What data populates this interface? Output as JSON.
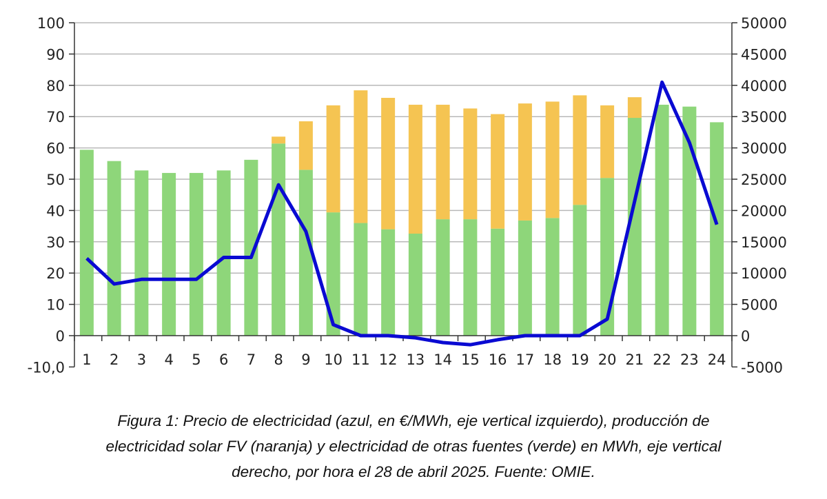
{
  "chart_data": {
    "type": "bar",
    "stacked": true,
    "categories": [
      "1",
      "2",
      "3",
      "4",
      "5",
      "6",
      "7",
      "8",
      "9",
      "10",
      "11",
      "12",
      "13",
      "14",
      "15",
      "16",
      "17",
      "18",
      "19",
      "20",
      "21",
      "22",
      "23",
      "24"
    ],
    "series": [
      {
        "name": "Otras fuentes (verde)",
        "axis": "right",
        "color": "#8ed67a",
        "values": [
          29700,
          27900,
          26400,
          26000,
          26000,
          26400,
          28100,
          30700,
          26500,
          19700,
          18000,
          17000,
          16300,
          18600,
          18600,
          17100,
          18400,
          18800,
          20900,
          25200,
          34800,
          36900,
          36600,
          34100
        ]
      },
      {
        "name": "Solar FV (naranja)",
        "axis": "right",
        "color": "#f5c452",
        "values": [
          0,
          0,
          0,
          0,
          0,
          0,
          0,
          1100,
          7750,
          17100,
          21200,
          21000,
          20600,
          18300,
          17700,
          18300,
          18700,
          18600,
          17500,
          11600,
          3300,
          0,
          0,
          0
        ]
      },
      {
        "name": "Precio (azul)",
        "type": "line",
        "axis": "left",
        "color": "#0a0ad2",
        "values": [
          24.7,
          16.5,
          18,
          18,
          18,
          25,
          25,
          48.2,
          33.3,
          3.5,
          0,
          0,
          -0.7,
          -2.2,
          -2.9,
          -1.3,
          0,
          0,
          0,
          5.3,
          43,
          81,
          61.7,
          35.5
        ]
      }
    ],
    "left_axis": {
      "ylim": [
        -10,
        100
      ],
      "ticks": [
        "-10,0",
        "0",
        "10",
        "20",
        "30",
        "40",
        "50",
        "60",
        "70",
        "80",
        "90",
        "100"
      ],
      "tick_values": [
        -10,
        0,
        10,
        20,
        30,
        40,
        50,
        60,
        70,
        80,
        90,
        100
      ]
    },
    "right_axis": {
      "ylim": [
        -5000,
        50000
      ],
      "ticks": [
        "-5000",
        "0",
        "5000",
        "10000",
        "15000",
        "20000",
        "25000",
        "30000",
        "35000",
        "40000",
        "45000",
        "50000"
      ],
      "tick_values": [
        -5000,
        0,
        5000,
        10000,
        15000,
        20000,
        25000,
        30000,
        35000,
        40000,
        45000,
        50000
      ]
    },
    "grid": true,
    "title": "",
    "xlabel": "",
    "ylabel": ""
  },
  "caption": {
    "line1": "Figura 1: Precio de electricidad (azul, en €/MWh, eje vertical izquierdo), producción de",
    "line2": "electricidad solar FV (naranja) y electricidad de otras fuentes (verde) en MWh, eje vertical",
    "line3": "derecho, por hora el 28 de abril 2025. Fuente: OMIE."
  }
}
